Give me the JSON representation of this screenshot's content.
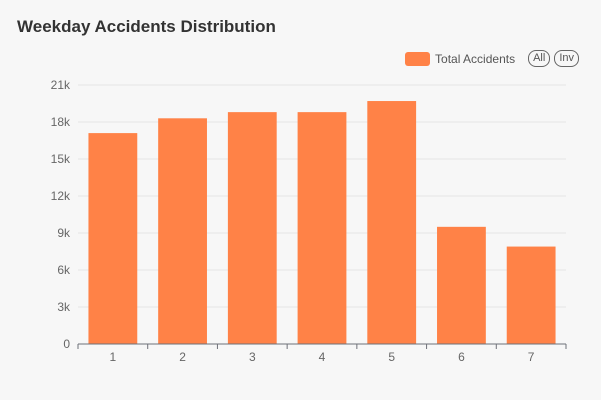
{
  "title": "Weekday Accidents Distribution",
  "legend": {
    "series_label": "Total Accidents",
    "all_button": "All",
    "inv_button": "Inv"
  },
  "colors": {
    "bar": "#ff8247",
    "grid": "#e6e6e6",
    "axis": "#6e7079"
  },
  "chart_data": {
    "type": "bar",
    "categories": [
      "1",
      "2",
      "3",
      "4",
      "5",
      "6",
      "7"
    ],
    "series": [
      {
        "name": "Total Accidents",
        "values": [
          17100,
          18300,
          18800,
          18800,
          19700,
          9500,
          7900
        ]
      }
    ],
    "yticks": [
      "0",
      "3k",
      "6k",
      "9k",
      "12k",
      "15k",
      "18k",
      "21k"
    ],
    "ylim": [
      0,
      21000
    ],
    "grid": true,
    "legend_position": "top-right"
  }
}
